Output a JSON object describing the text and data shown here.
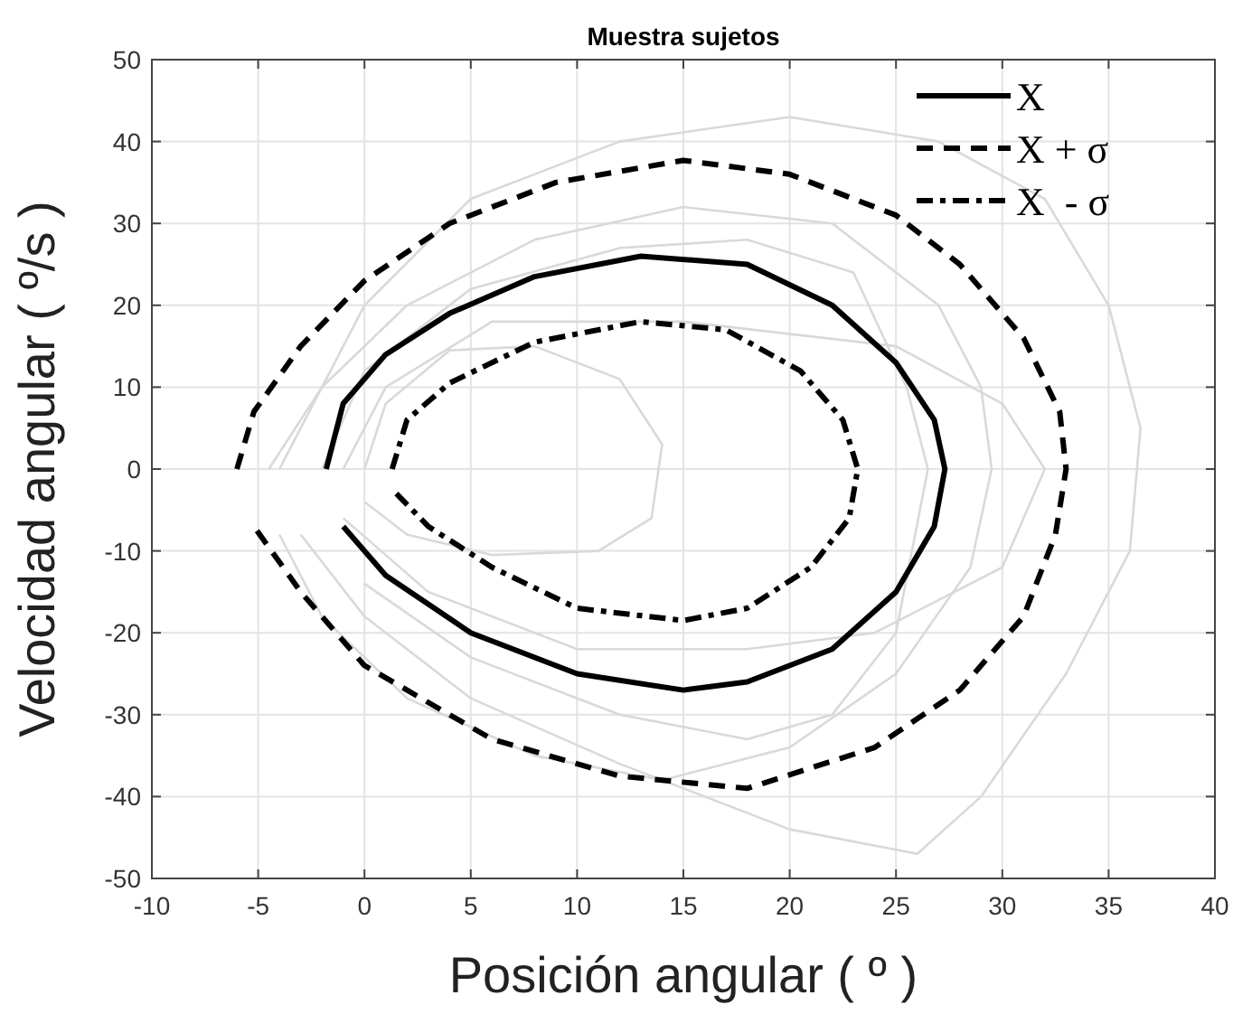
{
  "chart_data": {
    "type": "line",
    "title": "Muestra sujetos",
    "xlabel": "Posición angular ( º )",
    "ylabel": "Velocidad angular ( º/s )",
    "xlim": [
      -10,
      40
    ],
    "xticks": [
      -10,
      -5,
      0,
      5,
      10,
      15,
      20,
      25,
      30,
      35,
      40
    ],
    "ylim": [
      -50,
      50
    ],
    "yticks": [
      -50,
      -40,
      -30,
      -20,
      -10,
      0,
      10,
      20,
      30,
      40,
      50
    ],
    "grid": true,
    "legend": "top right",
    "marker": "none",
    "series": [
      {
        "color": "#d9d9d9",
        "line_style": "solid",
        "x": [
          -4,
          0,
          5,
          12,
          20,
          27,
          32,
          35,
          36.5,
          36,
          33,
          29,
          26,
          20,
          12,
          5,
          0,
          -3
        ],
        "values": [
          0,
          20,
          33,
          40,
          43,
          40,
          33,
          20,
          5,
          -10,
          -25,
          -40,
          -47,
          -44,
          -36,
          -28,
          -18,
          -8
        ]
      },
      {
        "color": "#d9d9d9",
        "line_style": "solid",
        "x": [
          0,
          1,
          4,
          8,
          12,
          14,
          13.5,
          11,
          6,
          2,
          0
        ],
        "values": [
          0,
          8,
          14.5,
          15,
          11,
          3,
          -6,
          -10,
          -10.5,
          -8,
          -4
        ]
      },
      {
        "color": "#d9d9d9",
        "line_style": "solid",
        "x": [
          -4.5,
          -2,
          2,
          8,
          15,
          22,
          27,
          29,
          29.5,
          28.5,
          25,
          20,
          14,
          8,
          2,
          -2,
          -4
        ],
        "values": [
          0,
          10,
          20,
          28,
          32,
          30,
          20,
          10,
          0,
          -12,
          -25,
          -34,
          -38,
          -35,
          -28,
          -18,
          -8
        ]
      },
      {
        "color": "#d9d9d9",
        "line_style": "solid",
        "x": [
          -2,
          0,
          5,
          12,
          18,
          23,
          25.5,
          26.5,
          25,
          22,
          18,
          12,
          5,
          0
        ],
        "values": [
          0,
          12,
          22,
          27,
          28,
          24,
          10,
          0,
          -20,
          -30,
          -33,
          -30,
          -23,
          -14
        ]
      },
      {
        "color": "#d9d9d9",
        "line_style": "solid",
        "x": [
          -1,
          1,
          6,
          15,
          25,
          30,
          32,
          30,
          24,
          18,
          10,
          3,
          -1
        ],
        "values": [
          0,
          10,
          18,
          18,
          15,
          8,
          0,
          -12,
          -20,
          -22,
          -22,
          -15,
          -6
        ]
      },
      {
        "name": "X",
        "color": "#000000",
        "line_style": "solid",
        "x": [
          -1.8,
          -1,
          1,
          4,
          8,
          13,
          18,
          22,
          25,
          26.8,
          27.3,
          26.8,
          25,
          22,
          18,
          15,
          10,
          5,
          1,
          -1
        ],
        "values": [
          0,
          8,
          14,
          19,
          23.5,
          26,
          25,
          20,
          13,
          6,
          0,
          -7,
          -15,
          -22,
          -26,
          -27,
          -25,
          -20,
          -13,
          -7
        ]
      },
      {
        "name": "X + σ",
        "color": "#000000",
        "line_style": "dashed",
        "x": [
          -6,
          -5.2,
          -3,
          0,
          4,
          9,
          15,
          20,
          25,
          28,
          31,
          32.7,
          33,
          32.5,
          31,
          28,
          24,
          18,
          12,
          6,
          0,
          -3,
          -5.2
        ],
        "values": [
          0,
          7,
          15,
          23,
          30,
          35,
          37.7,
          36,
          31,
          25,
          16,
          7,
          0,
          -8,
          -18,
          -27,
          -34,
          -39,
          -37.5,
          -33,
          -24,
          -15,
          -7
        ]
      },
      {
        "name": "X  - σ",
        "color": "#000000",
        "line_style": "dashdot",
        "x": [
          1.3,
          2,
          4,
          8,
          13,
          17,
          20.5,
          22.5,
          23.2,
          22.8,
          21,
          18,
          15,
          10,
          6,
          3,
          1.5
        ],
        "values": [
          0,
          6,
          10.5,
          15.5,
          18,
          17,
          12,
          6,
          0,
          -6,
          -12,
          -17,
          -18.5,
          -17,
          -12,
          -7,
          -3
        ]
      }
    ]
  }
}
